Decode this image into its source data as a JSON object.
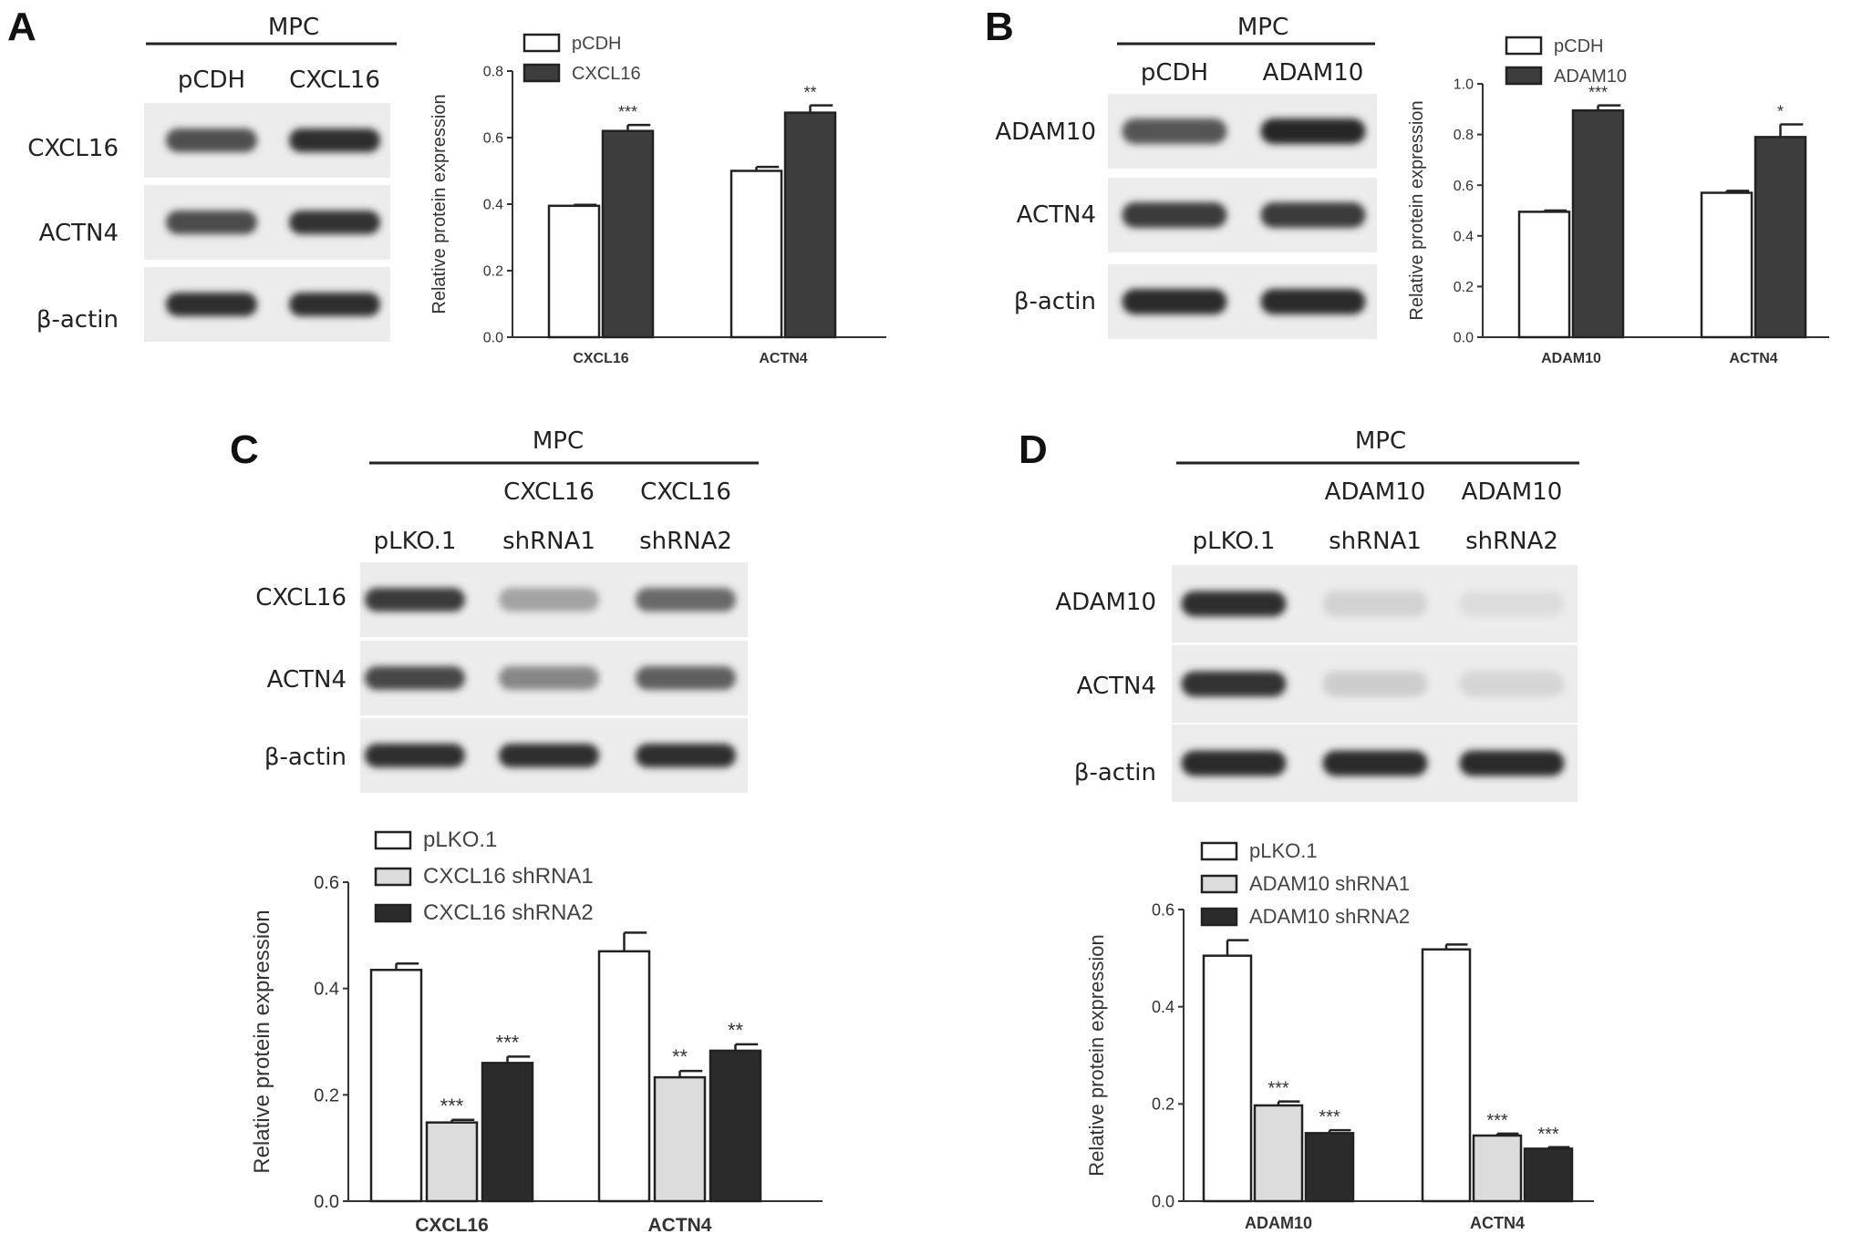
{
  "panels": [
    {
      "letter": "A",
      "blot": {
        "header": "MPC",
        "lanes": [
          [
            "pCDH"
          ],
          [
            "CXCL16"
          ]
        ],
        "bands": [
          {
            "label": "CXCL16",
            "intensity": [
              0.78,
              0.95
            ]
          },
          {
            "label": "ACTN4",
            "intensity": [
              0.8,
              0.92
            ]
          },
          {
            "label": "β-actin",
            "intensity": [
              0.95,
              0.95
            ]
          }
        ]
      },
      "chart": {
        "type": "bar",
        "ylabel": "Relative protein expression",
        "ylim": [
          0,
          0.8
        ],
        "yticks": [
          0.0,
          0.2,
          0.4,
          0.6,
          0.8
        ],
        "ytick_labels": [
          "0.0",
          "0.2",
          "0.4",
          "0.6",
          "0.8"
        ],
        "categories": [
          "CXCL16",
          "ACTN4"
        ],
        "series": [
          {
            "name": "pCDH",
            "color": "#ffffff",
            "values": [
              0.395,
              0.5
            ],
            "errors": [
              0.003,
              0.012
            ],
            "sig": [
              "",
              ""
            ]
          },
          {
            "name": "CXCL16",
            "color": "#3d3d3d",
            "values": [
              0.62,
              0.675
            ],
            "errors": [
              0.018,
              0.022
            ],
            "sig": [
              "***",
              "**"
            ]
          }
        ]
      }
    },
    {
      "letter": "B",
      "blot": {
        "header": "MPC",
        "lanes": [
          [
            "pCDH"
          ],
          [
            "ADAM10"
          ]
        ],
        "bands": [
          {
            "label": "ADAM10",
            "intensity": [
              0.75,
              0.98
            ]
          },
          {
            "label": "ACTN4",
            "intensity": [
              0.88,
              0.88
            ]
          },
          {
            "label": "β-actin",
            "intensity": [
              0.97,
              0.97
            ]
          }
        ]
      },
      "chart": {
        "type": "bar",
        "ylabel": "Relative protein expression",
        "ylim": [
          0,
          1.0
        ],
        "yticks": [
          0.0,
          0.2,
          0.4,
          0.6,
          0.8,
          1.0
        ],
        "ytick_labels": [
          "0.0",
          "0.2",
          "0.4",
          "0.6",
          "0.8",
          "1.0"
        ],
        "categories": [
          "ADAM10",
          "ACTN4"
        ],
        "series": [
          {
            "name": "pCDH",
            "color": "#ffffff",
            "values": [
              0.495,
              0.57
            ],
            "errors": [
              0.005,
              0.008
            ],
            "sig": [
              "",
              ""
            ]
          },
          {
            "name": "ADAM10",
            "color": "#3d3d3d",
            "values": [
              0.895,
              0.79
            ],
            "errors": [
              0.02,
              0.05
            ],
            "sig": [
              "***",
              "*"
            ]
          }
        ]
      }
    },
    {
      "letter": "C",
      "blot": {
        "header": "MPC",
        "lanes": [
          [
            "pLKO.1"
          ],
          [
            "CXCL16",
            "shRNA1"
          ],
          [
            "CXCL16",
            "shRNA2"
          ]
        ],
        "bands": [
          {
            "label": "CXCL16",
            "intensity": [
              0.88,
              0.45,
              0.65
            ]
          },
          {
            "label": "ACTN4",
            "intensity": [
              0.82,
              0.55,
              0.7
            ]
          },
          {
            "label": "β-actin",
            "intensity": [
              0.95,
              0.95,
              0.95
            ]
          }
        ]
      },
      "chart": {
        "type": "bar",
        "ylabel": "Relative protein expression",
        "ylim": [
          0,
          0.6
        ],
        "yticks": [
          0.0,
          0.2,
          0.4,
          0.6
        ],
        "ytick_labels": [
          "0.0",
          "0.2",
          "0.4",
          "0.6"
        ],
        "categories": [
          "CXCL16",
          "ACTN4"
        ],
        "series": [
          {
            "name": "pLKO.1",
            "color": "#ffffff",
            "values": [
              0.435,
              0.47
            ],
            "errors": [
              0.012,
              0.035
            ],
            "sig": [
              "",
              ""
            ]
          },
          {
            "name": "CXCL16 shRNA1",
            "color": "#dcdcdc",
            "values": [
              0.148,
              0.233
            ],
            "errors": [
              0.005,
              0.012
            ],
            "sig": [
              "***",
              "**"
            ]
          },
          {
            "name": "CXCL16 shRNA2",
            "color": "#2b2b2b",
            "values": [
              0.26,
              0.283
            ],
            "errors": [
              0.012,
              0.012
            ],
            "sig": [
              "***",
              "**"
            ]
          }
        ]
      }
    },
    {
      "letter": "D",
      "blot": {
        "header": "MPC",
        "lanes": [
          [
            "pLKO.1"
          ],
          [
            "ADAM10",
            "shRNA1"
          ],
          [
            "ADAM10",
            "shRNA2"
          ]
        ],
        "bands": [
          {
            "label": "ADAM10",
            "intensity": [
              0.95,
              0.22,
              0.15
            ]
          },
          {
            "label": "ACTN4",
            "intensity": [
              0.92,
              0.25,
              0.2
            ]
          },
          {
            "label": "β-actin",
            "intensity": [
              0.97,
              0.97,
              0.97
            ]
          }
        ]
      },
      "chart": {
        "type": "bar",
        "ylabel": "Relative protein expression",
        "ylim": [
          0,
          0.6
        ],
        "yticks": [
          0.0,
          0.2,
          0.4,
          0.6
        ],
        "ytick_labels": [
          "0.0",
          "0.2",
          "0.4",
          "0.6"
        ],
        "categories": [
          "ADAM10",
          "ACTN4"
        ],
        "series": [
          {
            "name": "pLKO.1",
            "color": "#ffffff",
            "values": [
              0.505,
              0.518
            ],
            "errors": [
              0.032,
              0.01
            ],
            "sig": [
              "",
              ""
            ]
          },
          {
            "name": "ADAM10 shRNA1",
            "color": "#dcdcdc",
            "values": [
              0.197,
              0.135
            ],
            "errors": [
              0.008,
              0.004
            ],
            "sig": [
              "***",
              "***"
            ]
          },
          {
            "name": "ADAM10 shRNA2",
            "color": "#2b2b2b",
            "values": [
              0.14,
              0.108
            ],
            "errors": [
              0.006,
              0.003
            ],
            "sig": [
              "***",
              "***"
            ]
          }
        ]
      }
    }
  ],
  "chart_data": [
    {
      "type": "bar",
      "ylabel": "Relative protein expression",
      "ylim": [
        0,
        0.8
      ],
      "categories": [
        "CXCL16",
        "ACTN4"
      ],
      "series": [
        {
          "name": "pCDH",
          "values": [
            0.395,
            0.5
          ]
        },
        {
          "name": "CXCL16",
          "values": [
            0.62,
            0.675
          ]
        }
      ]
    },
    {
      "type": "bar",
      "ylabel": "Relative protein expression",
      "ylim": [
        0,
        1.0
      ],
      "categories": [
        "ADAM10",
        "ACTN4"
      ],
      "series": [
        {
          "name": "pCDH",
          "values": [
            0.495,
            0.57
          ]
        },
        {
          "name": "ADAM10",
          "values": [
            0.895,
            0.79
          ]
        }
      ]
    },
    {
      "type": "bar",
      "ylabel": "Relative protein expression",
      "ylim": [
        0,
        0.6
      ],
      "categories": [
        "CXCL16",
        "ACTN4"
      ],
      "series": [
        {
          "name": "pLKO.1",
          "values": [
            0.435,
            0.47
          ]
        },
        {
          "name": "CXCL16 shRNA1",
          "values": [
            0.148,
            0.233
          ]
        },
        {
          "name": "CXCL16 shRNA2",
          "values": [
            0.26,
            0.283
          ]
        }
      ]
    },
    {
      "type": "bar",
      "ylabel": "Relative protein expression",
      "ylim": [
        0,
        0.6
      ],
      "categories": [
        "ADAM10",
        "ACTN4"
      ],
      "series": [
        {
          "name": "pLKO.1",
          "values": [
            0.505,
            0.518
          ]
        },
        {
          "name": "ADAM10 shRNA1",
          "values": [
            0.197,
            0.135
          ]
        },
        {
          "name": "ADAM10 shRNA2",
          "values": [
            0.14,
            0.108
          ]
        }
      ]
    }
  ]
}
